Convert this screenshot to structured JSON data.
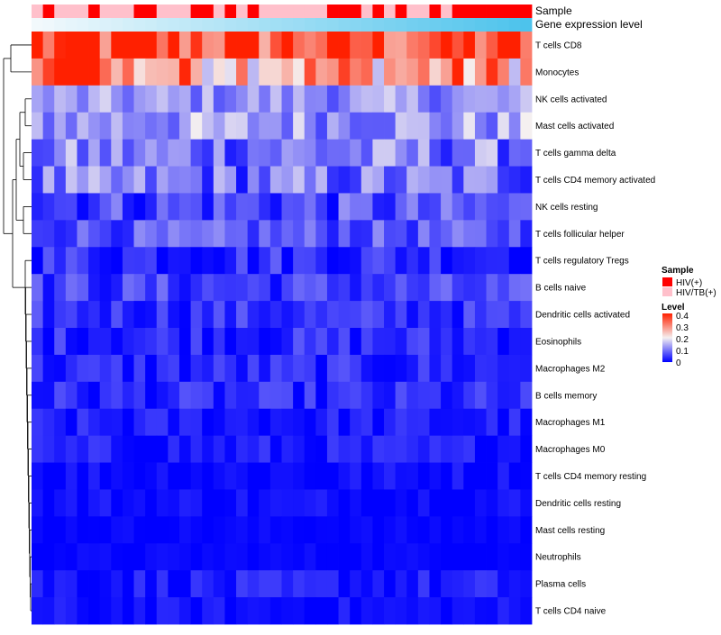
{
  "chart_data": {
    "type": "heatmap",
    "title": "",
    "rows": [
      "T cells CD8",
      "Monocytes",
      "NK cells activated",
      "Mast cells activated",
      "T cells gamma delta",
      "T cells CD4 memory activated",
      "NK cells resting",
      "T cells follicular helper",
      "T cells regulatory  Tregs",
      "B cells naive",
      "Dendritic cells activated",
      "Eosinophils",
      "Macrophages M2",
      "B cells memory",
      "Macrophages M1",
      "Macrophages M0",
      "T cells CD4 memory resting",
      "Dendritic cells resting",
      "Mast cells resting",
      "Neutrophils",
      "Plasma cells",
      "T cells CD4 naive"
    ],
    "n_columns": 44,
    "row_means": [
      0.36,
      0.28,
      0.12,
      0.13,
      0.1,
      0.09,
      0.06,
      0.07,
      0.04,
      0.05,
      0.04,
      0.035,
      0.03,
      0.03,
      0.02,
      0.02,
      0.01,
      0.01,
      0.005,
      0.005,
      0.02,
      0.01
    ],
    "row_noise": [
      0.08,
      0.08,
      0.035,
      0.045,
      0.05,
      0.05,
      0.04,
      0.03,
      0.03,
      0.03,
      0.025,
      0.025,
      0.025,
      0.025,
      0.02,
      0.02,
      0.015,
      0.015,
      0.006,
      0.006,
      0.02,
      0.015
    ],
    "annotations": [
      {
        "name": "Sample",
        "values": [
          "HIV/TB(+)",
          "HIV(+)",
          "HIV/TB(+)",
          "HIV/TB(+)",
          "HIV/TB(+)",
          "HIV(+)",
          "HIV/TB(+)",
          "HIV/TB(+)",
          "HIV/TB(+)",
          "HIV(+)",
          "HIV(+)",
          "HIV/TB(+)",
          "HIV/TB(+)",
          "HIV/TB(+)",
          "HIV(+)",
          "HIV(+)",
          "HIV/TB(+)",
          "HIV(+)",
          "HIV/TB(+)",
          "HIV(+)",
          "HIV/TB(+)",
          "HIV/TB(+)",
          "HIV/TB(+)",
          "HIV/TB(+)",
          "HIV/TB(+)",
          "HIV/TB(+)",
          "HIV(+)",
          "HIV(+)",
          "HIV(+)",
          "HIV/TB(+)",
          "HIV(+)",
          "HIV/TB(+)",
          "HIV(+)",
          "HIV/TB(+)",
          "HIV/TB(+)",
          "HIV(+)",
          "HIV/TB(+)",
          "HIV(+)",
          "HIV(+)",
          "HIV(+)",
          "HIV(+)",
          "HIV(+)",
          "HIV(+)",
          "HIV(+)"
        ]
      },
      {
        "name": "Gene expression level",
        "values": [
          0.0,
          0.02,
          0.05,
          0.07,
          0.09,
          0.12,
          0.14,
          0.16,
          0.19,
          0.21,
          0.23,
          0.26,
          0.28,
          0.3,
          0.33,
          0.35,
          0.37,
          0.4,
          0.42,
          0.44,
          0.47,
          0.49,
          0.51,
          0.53,
          0.56,
          0.58,
          0.6,
          0.63,
          0.65,
          0.67,
          0.7,
          0.72,
          0.74,
          0.77,
          0.79,
          0.81,
          0.84,
          0.86,
          0.88,
          0.91,
          0.93,
          0.95,
          0.98,
          1.0
        ]
      }
    ],
    "legend": [
      {
        "title": "Sample",
        "entries": [
          {
            "label": "HIV(+)",
            "color": "#ff0000"
          },
          {
            "label": "HIV/TB(+)",
            "color": "#ffc0cb"
          }
        ]
      },
      {
        "title": "Level",
        "ticks": [
          "0.4",
          "0.3",
          "0.2",
          "0.1",
          "0"
        ],
        "range": [
          0,
          0.4
        ],
        "colors": {
          "low": "#0000ff",
          "mid": "#f5f0f0",
          "high": "#ff2000"
        }
      }
    ],
    "annotation_colors": {
      "low": "#f2f9fc",
      "high": "#4dc3ec"
    }
  }
}
